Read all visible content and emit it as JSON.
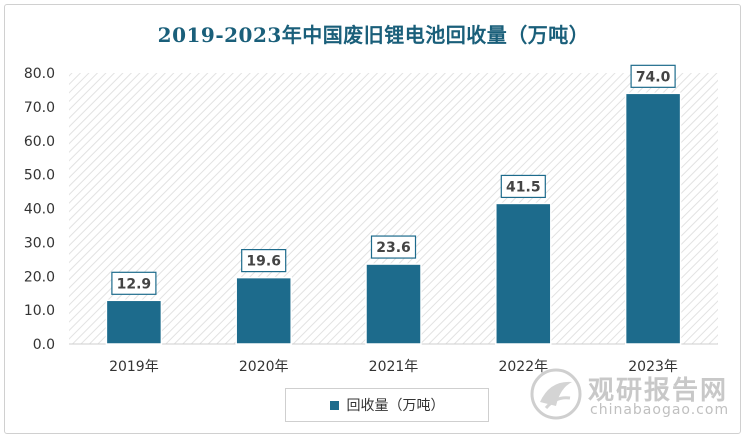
{
  "chart_data": {
    "type": "bar",
    "title": "2019-2023年中国废旧锂电池回收量（万吨）",
    "categories": [
      "2019年",
      "2020年",
      "2021年",
      "2022年",
      "2023年"
    ],
    "series": [
      {
        "name": "回收量（万吨）",
        "values": [
          12.9,
          19.6,
          23.6,
          41.5,
          74.0
        ]
      }
    ],
    "data_labels": [
      "12.9",
      "19.6",
      "23.6",
      "41.5",
      "74.0"
    ],
    "ylim": [
      0,
      80
    ],
    "yticks": [
      "0.0",
      "10.0",
      "20.0",
      "30.0",
      "40.0",
      "50.0",
      "60.0",
      "70.0",
      "80.0"
    ],
    "legend_position": "bottom",
    "bar_color": "#1d6b8c",
    "label_border_color": "#1d6b8c",
    "plot_background": "hatched"
  },
  "watermark": {
    "brand_cn": "观研报告网",
    "url": "chinabaogao.com"
  }
}
